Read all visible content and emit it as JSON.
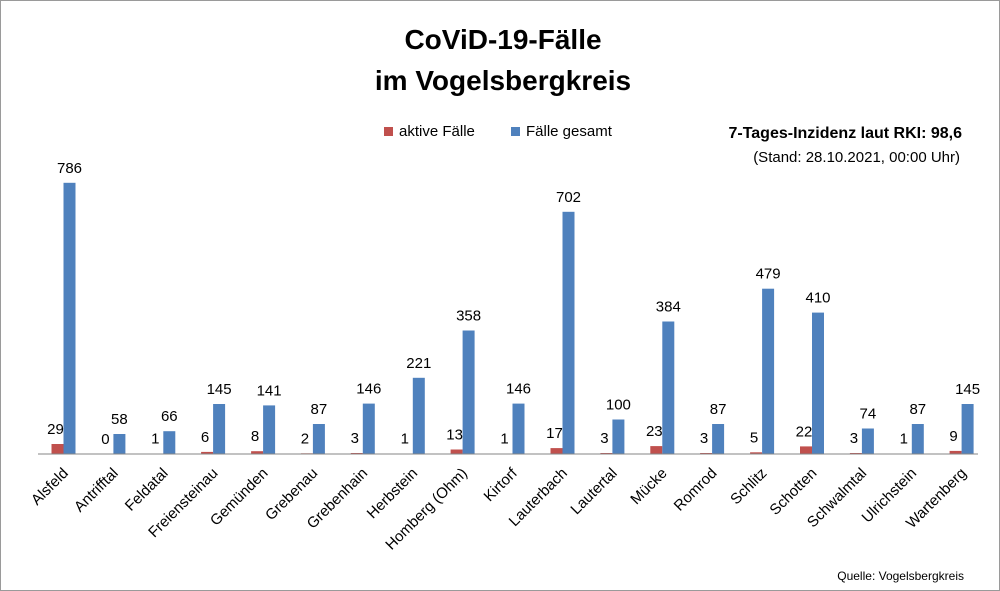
{
  "chart_data": {
    "type": "bar",
    "title_lines": [
      "CoViD-19-Fälle",
      "im Vogelsbergkreis"
    ],
    "categories": [
      "Alsfeld",
      "Antrifftal",
      "Feldatal",
      "Freiensteinau",
      "Gemünden",
      "Grebenau",
      "Grebenhain",
      "Herbstein",
      "Homberg (Ohm)",
      "Kirtorf",
      "Lauterbach",
      "Lautertal",
      "Mücke",
      "Romrod",
      "Schlitz",
      "Schotten",
      "Schwalmtal",
      "Ulrichstein",
      "Wartenberg"
    ],
    "series": [
      {
        "name": "aktive Fälle",
        "color": "#c0504d",
        "values": [
          29,
          0,
          1,
          6,
          8,
          2,
          3,
          1,
          13,
          1,
          17,
          3,
          23,
          3,
          5,
          22,
          3,
          1,
          9
        ]
      },
      {
        "name": "Fälle gesamt",
        "color": "#4f81bd",
        "values": [
          786,
          58,
          66,
          145,
          141,
          87,
          146,
          221,
          358,
          146,
          702,
          100,
          384,
          87,
          479,
          410,
          74,
          87,
          145
        ]
      }
    ],
    "ylim": [
      0,
      800
    ],
    "legend_position": "top",
    "grid": false
  },
  "notes": {
    "incidence_label": "7-Tages-Inzidenz laut RKI: ",
    "incidence_value": "98,6",
    "stand": "(Stand: 28.10.2021, 00:00 Uhr)"
  },
  "source": "Quelle: Vogelsbergkreis"
}
